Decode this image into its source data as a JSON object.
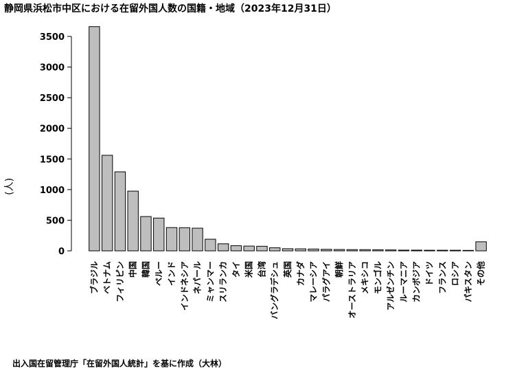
{
  "page": {
    "title": "静岡県浜松市中区における在留外国人数の国籍・地域（2023年12月31日）",
    "caption": "出入国在留管理庁「在留外国人統計」を基に作成（大林）"
  },
  "chart_data": {
    "type": "bar",
    "title": "静岡県浜松市中区における在留外国人数の国籍・地域（2023年12月31日）",
    "xlabel": "",
    "ylabel": "(人)",
    "ylim": [
      0,
      3700
    ],
    "yticks": [
      0,
      500,
      1000,
      1500,
      2000,
      2500,
      3000,
      3500
    ],
    "grid": false,
    "bar_color": "#bebebe",
    "categories": [
      "ブラジル",
      "ベトナム",
      "フィリピン",
      "中国",
      "韓国",
      "ペルー",
      "インド",
      "インドネシア",
      "ネパール",
      "ミャンマー",
      "スリランカ",
      "タイ",
      "米国",
      "台湾",
      "バングラデシュ",
      "英国",
      "カナダ",
      "マレーシア",
      "パラグアイ",
      "朝鮮",
      "オーストラリア",
      "メキシコ",
      "モンゴル",
      "アルゼンチン",
      "ルーマニア",
      "カンボジア",
      "ドイツ",
      "フランス",
      "ロシア",
      "パキスタン",
      "その他"
    ],
    "values": [
      3660,
      1560,
      1290,
      975,
      560,
      535,
      380,
      378,
      370,
      190,
      115,
      85,
      78,
      75,
      50,
      35,
      33,
      30,
      25,
      22,
      20,
      20,
      18,
      15,
      12,
      12,
      10,
      10,
      10,
      8,
      148
    ]
  }
}
